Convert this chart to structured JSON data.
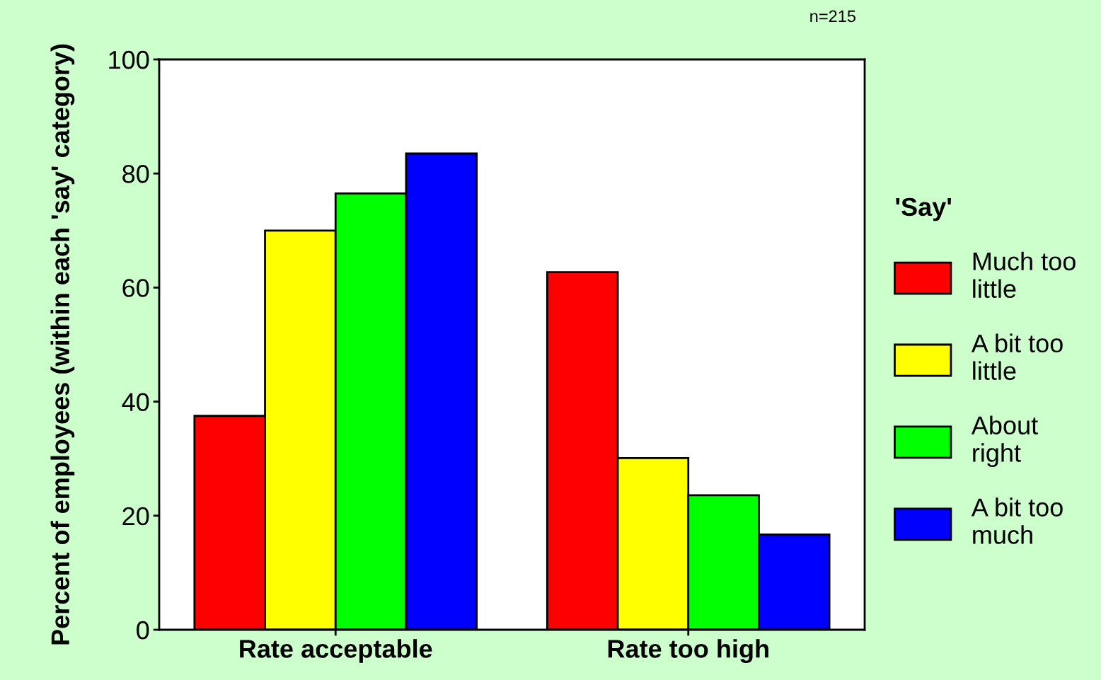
{
  "chart_data": {
    "type": "bar",
    "ylabel": "Percent of employees (within each 'say' category)",
    "legend_title": "'Say'",
    "legend": "right",
    "grid": false,
    "categories": [
      "Rate acceptable",
      "Rate too high"
    ],
    "series": [
      {
        "name": "Much too little",
        "color": "#ff0000",
        "values": [
          37.5,
          62.7
        ]
      },
      {
        "name": "A bit too little",
        "color": "#ffff00",
        "values": [
          70.0,
          30.1
        ]
      },
      {
        "name": "About right",
        "color": "#00ff00",
        "values": [
          76.5,
          23.6
        ]
      },
      {
        "name": "A bit too much",
        "color": "#0000ff",
        "values": [
          83.5,
          16.7
        ]
      }
    ],
    "ylim": [
      0,
      100
    ],
    "yticks": [
      0,
      20,
      40,
      60,
      80,
      100
    ],
    "annotations": [
      "n=215"
    ]
  }
}
